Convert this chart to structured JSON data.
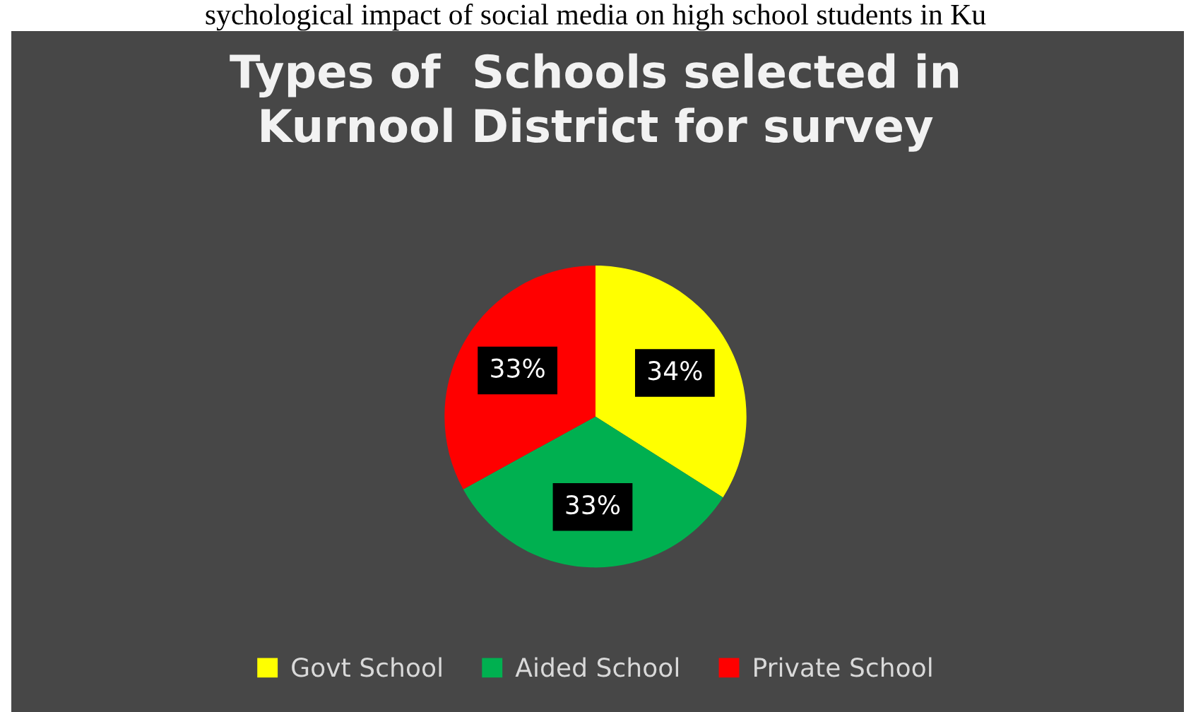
{
  "chart_data": {
    "type": "pie",
    "title": "Types of  Schools selected in\nKurnool District for survey",
    "annotations": [
      "sychological impact of social media on high school students in Ku"
    ],
    "categories": [
      "Govt School",
      "Aided School",
      "Private School"
    ],
    "values": [
      34,
      33,
      33
    ],
    "colors": [
      "#ffff00",
      "#00b050",
      "#ff0000"
    ],
    "value_labels": [
      "34%",
      "33%",
      "33%"
    ],
    "legend": "bottom"
  }
}
